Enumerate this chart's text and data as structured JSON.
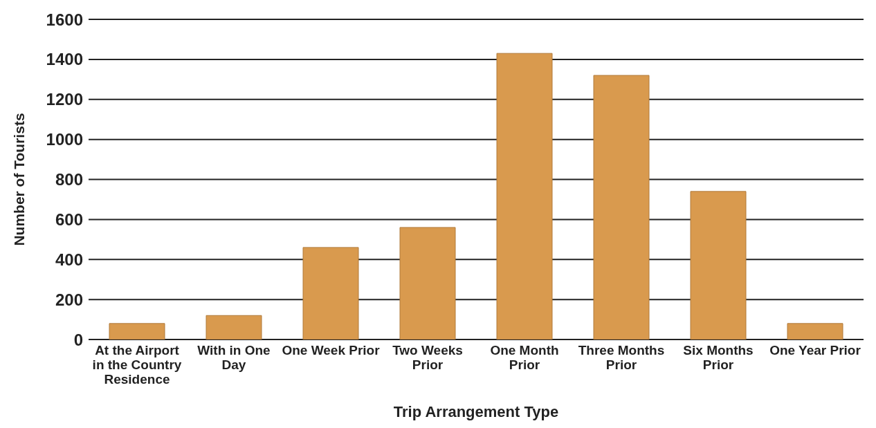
{
  "chart_data": {
    "type": "bar",
    "xlabel": "Trip Arrangement Type",
    "ylabel": "Number of Tourists",
    "categories": [
      "At the Airport in the Country Residence",
      "With in One Day",
      "One Week Prior",
      "Two Weeks Prior",
      "One Month Prior",
      "Three Months Prior",
      "Six Months Prior",
      "One Year Prior"
    ],
    "values": [
      80,
      120,
      460,
      560,
      1430,
      1320,
      740,
      80
    ],
    "color": "#d99a4e",
    "ylim": [
      0,
      1600
    ],
    "yticks": [
      0,
      200,
      400,
      600,
      800,
      1000,
      1200,
      1400,
      1600
    ],
    "grid": "y"
  }
}
